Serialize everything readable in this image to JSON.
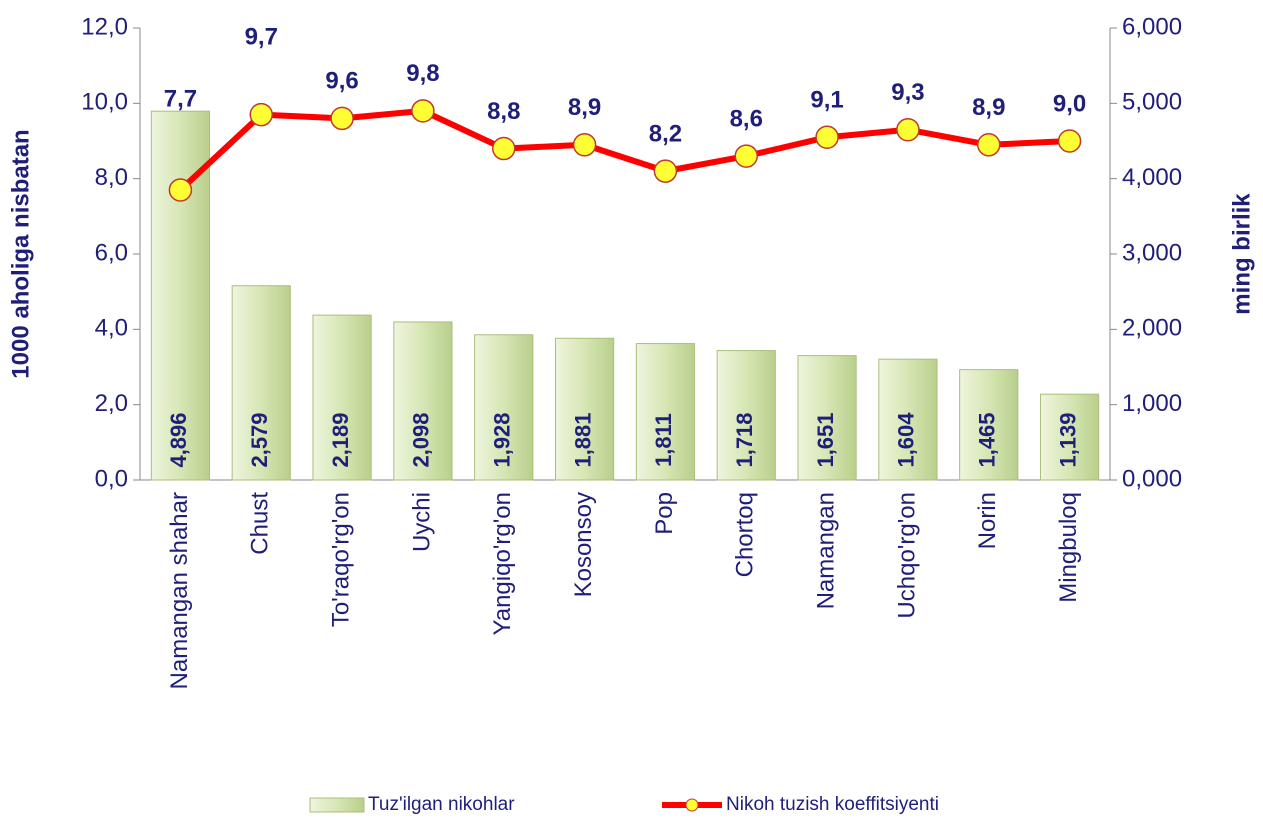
{
  "chart_data": {
    "type": "combo",
    "categories": [
      "Namangan shahar",
      "Chust",
      "To'raqo'rg'on",
      "Uychi",
      "Yangiqo'rg'on",
      "Kosonsoy",
      "Pop",
      "Chortoq",
      "Namangan",
      "Uchqo'rg'on",
      "Norin",
      "Mingbuloq"
    ],
    "ylabel": "1000 aholiga nisbatan",
    "y2label": "ming birlik",
    "ylim": [
      0,
      12
    ],
    "yticks": [
      {
        "value": 0,
        "label": "0,0"
      },
      {
        "value": 2,
        "label": "2,0"
      },
      {
        "value": 4,
        "label": "4,0"
      },
      {
        "value": 6,
        "label": "6,0"
      },
      {
        "value": 8,
        "label": "8,0"
      },
      {
        "value": 10,
        "label": "10,0"
      },
      {
        "value": 12,
        "label": "12,0"
      }
    ],
    "y2lim": [
      0,
      6000
    ],
    "y2ticks": [
      {
        "value": 0,
        "label": "0,000"
      },
      {
        "value": 1000,
        "label": "1,000"
      },
      {
        "value": 2000,
        "label": "2,000"
      },
      {
        "value": 3000,
        "label": "3,000"
      },
      {
        "value": 4000,
        "label": "4,000"
      },
      {
        "value": 5000,
        "label": "5,000"
      },
      {
        "value": 6000,
        "label": "6,000"
      }
    ],
    "series": [
      {
        "name": "Tuz'ilgan nikohlar",
        "type": "bar",
        "axis": "y2",
        "color": "#d6e6b4",
        "values": [
          4896,
          2579,
          2189,
          2098,
          1928,
          1881,
          1811,
          1718,
          1651,
          1604,
          1465,
          1139
        ],
        "value_labels": [
          "4,896",
          "2,579",
          "2,189",
          "2,098",
          "1,928",
          "1,881",
          "1,811",
          "1,718",
          "1,651",
          "1,604",
          "1,465",
          "1,139"
        ]
      },
      {
        "name": "Nikoh tuzish koeffitsiyenti",
        "type": "line",
        "color": "#ff0000",
        "marker_color": "#ffff33",
        "values": [
          7.7,
          9.7,
          9.6,
          9.8,
          8.8,
          8.9,
          8.2,
          8.6,
          9.1,
          9.3,
          8.9,
          9.0
        ],
        "value_labels": [
          "7,7",
          "9,7",
          "9,6",
          "9,8",
          "8,8",
          "8,9",
          "8,2",
          "8,6",
          "9,1",
          "9,3",
          "8,9",
          "9,0"
        ]
      }
    ]
  }
}
